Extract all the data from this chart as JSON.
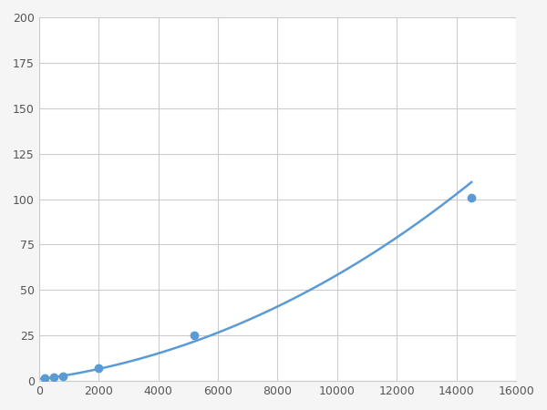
{
  "x": [
    200,
    500,
    800,
    2000,
    5200,
    14500
  ],
  "y": [
    1.5,
    2.0,
    2.5,
    7.0,
    25.0,
    101.0
  ],
  "line_color": "#5b9bd5",
  "marker_color": "#5b9bd5",
  "marker_size": 6,
  "line_width": 1.8,
  "xlim": [
    0,
    16000
  ],
  "ylim": [
    0,
    200
  ],
  "xticks": [
    0,
    2000,
    4000,
    6000,
    8000,
    10000,
    12000,
    14000,
    16000
  ],
  "yticks": [
    0,
    25,
    50,
    75,
    100,
    125,
    150,
    175,
    200
  ],
  "grid_color": "#cccccc",
  "background_color": "#ffffff",
  "figure_background": "#f5f5f5"
}
